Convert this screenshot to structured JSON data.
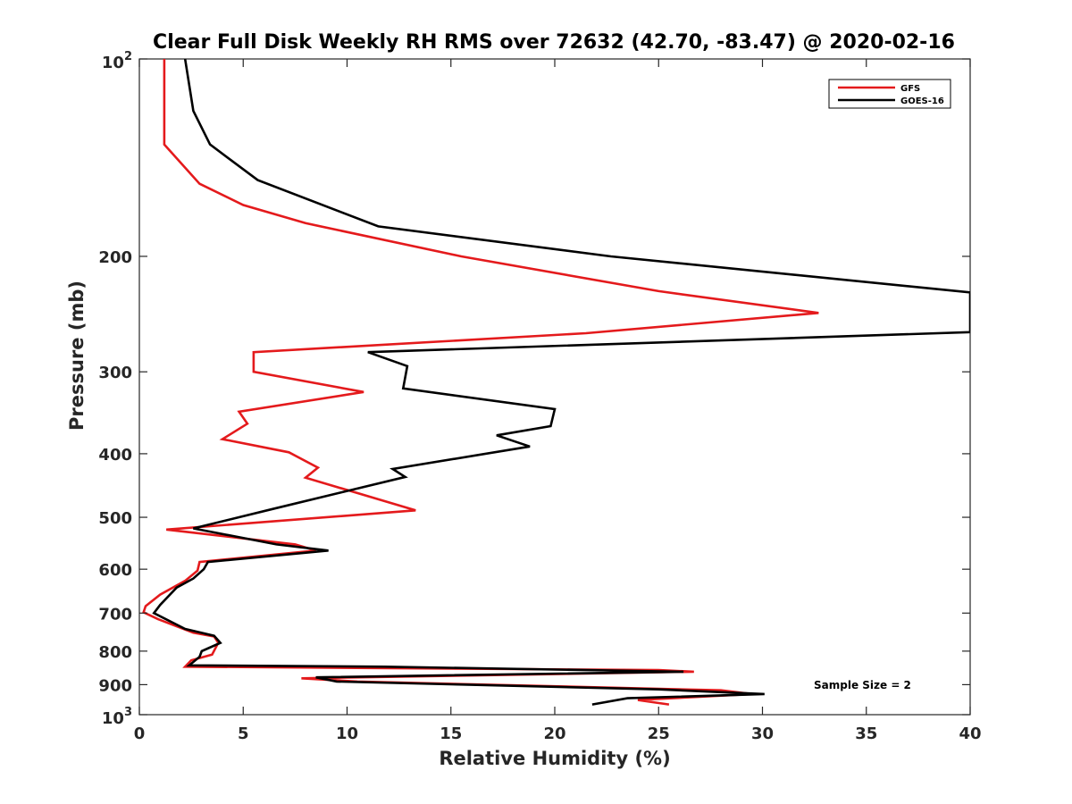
{
  "chart_data": {
    "type": "line",
    "title": "Clear Full Disk Weekly RH RMS over 72632 (42.70, -83.47) @ 2020-02-16",
    "xlabel": "Relative Humidity (%)",
    "ylabel": "Pressure (mb)",
    "xlim": [
      0,
      40
    ],
    "ylim": [
      100,
      1000
    ],
    "yscale": "log",
    "y_reversed": true,
    "x_ticks": [
      0,
      5,
      10,
      15,
      20,
      25,
      30,
      35,
      40
    ],
    "x_tick_labels": [
      "0",
      "5",
      "10",
      "15",
      "20",
      "25",
      "30",
      "35",
      "40"
    ],
    "y_ticks": [
      100,
      200,
      300,
      400,
      500,
      600,
      700,
      800,
      900,
      1000
    ],
    "y_tick_labels": [
      {
        "base": "10",
        "sup": "2"
      },
      {
        "base": "200",
        "sup": ""
      },
      {
        "base": "300",
        "sup": ""
      },
      {
        "base": "400",
        "sup": ""
      },
      {
        "base": "500",
        "sup": ""
      },
      {
        "base": "600",
        "sup": ""
      },
      {
        "base": "700",
        "sup": ""
      },
      {
        "base": "800",
        "sup": ""
      },
      {
        "base": "900",
        "sup": ""
      },
      {
        "base": "10",
        "sup": "3"
      }
    ],
    "grid": false,
    "legend_position": "top-right",
    "annotation": "Sample Size = 2",
    "series": [
      {
        "name": "GFS",
        "color": "#e41a1c",
        "points": [
          [
            1.2,
            100
          ],
          [
            1.2,
            135
          ],
          [
            2.9,
            155
          ],
          [
            5.0,
            167
          ],
          [
            8.0,
            178
          ],
          [
            15.5,
            200
          ],
          [
            25.0,
            226
          ],
          [
            32.7,
            244
          ],
          [
            21.5,
            262
          ],
          [
            5.5,
            280
          ],
          [
            5.5,
            300
          ],
          [
            10.8,
            322
          ],
          [
            4.8,
            345
          ],
          [
            5.2,
            360
          ],
          [
            4.0,
            380
          ],
          [
            7.2,
            398
          ],
          [
            8.6,
            420
          ],
          [
            8.0,
            435
          ],
          [
            13.3,
            488
          ],
          [
            1.3,
            522
          ],
          [
            7.5,
            550
          ],
          [
            8.5,
            562
          ],
          [
            2.9,
            585
          ],
          [
            2.8,
            603
          ],
          [
            2.2,
            625
          ],
          [
            1.0,
            656
          ],
          [
            0.3,
            683
          ],
          [
            0.2,
            698
          ],
          [
            0.9,
            715
          ],
          [
            2.6,
            750
          ],
          [
            3.6,
            760
          ],
          [
            3.8,
            777
          ],
          [
            3.5,
            810
          ],
          [
            2.5,
            826
          ],
          [
            2.2,
            845
          ],
          [
            25.0,
            855
          ],
          [
            26.7,
            860
          ],
          [
            7.8,
            880
          ],
          [
            10.5,
            890
          ],
          [
            28.0,
            918
          ],
          [
            29.5,
            930
          ],
          [
            24.0,
            950
          ],
          [
            25.5,
            965
          ]
        ]
      },
      {
        "name": "GOES-16",
        "color": "#000000",
        "points": [
          [
            2.2,
            100
          ],
          [
            2.6,
            120
          ],
          [
            3.4,
            135
          ],
          [
            5.7,
            153
          ],
          [
            11.5,
            180
          ],
          [
            22.7,
            200
          ],
          [
            40.0,
            227
          ],
          [
            40.0,
            261
          ],
          [
            11.0,
            280
          ],
          [
            12.9,
            294
          ],
          [
            12.7,
            318
          ],
          [
            20.0,
            342
          ],
          [
            19.8,
            363
          ],
          [
            17.2,
            375
          ],
          [
            18.8,
            390
          ],
          [
            12.2,
            422
          ],
          [
            12.8,
            434
          ],
          [
            6.5,
            485
          ],
          [
            2.6,
            520
          ],
          [
            6.6,
            550
          ],
          [
            9.1,
            562
          ],
          [
            3.3,
            585
          ],
          [
            3.1,
            600
          ],
          [
            2.6,
            620
          ],
          [
            1.8,
            640
          ],
          [
            1.0,
            680
          ],
          [
            0.7,
            700
          ],
          [
            2.2,
            740
          ],
          [
            3.6,
            758
          ],
          [
            3.9,
            777
          ],
          [
            3.0,
            800
          ],
          [
            2.9,
            816
          ],
          [
            2.4,
            841
          ],
          [
            11.8,
            845
          ],
          [
            26.2,
            860
          ],
          [
            8.5,
            877
          ],
          [
            9.5,
            890
          ],
          [
            25.0,
            915
          ],
          [
            30.1,
            930
          ],
          [
            23.5,
            944
          ],
          [
            21.8,
            965
          ]
        ]
      }
    ]
  }
}
